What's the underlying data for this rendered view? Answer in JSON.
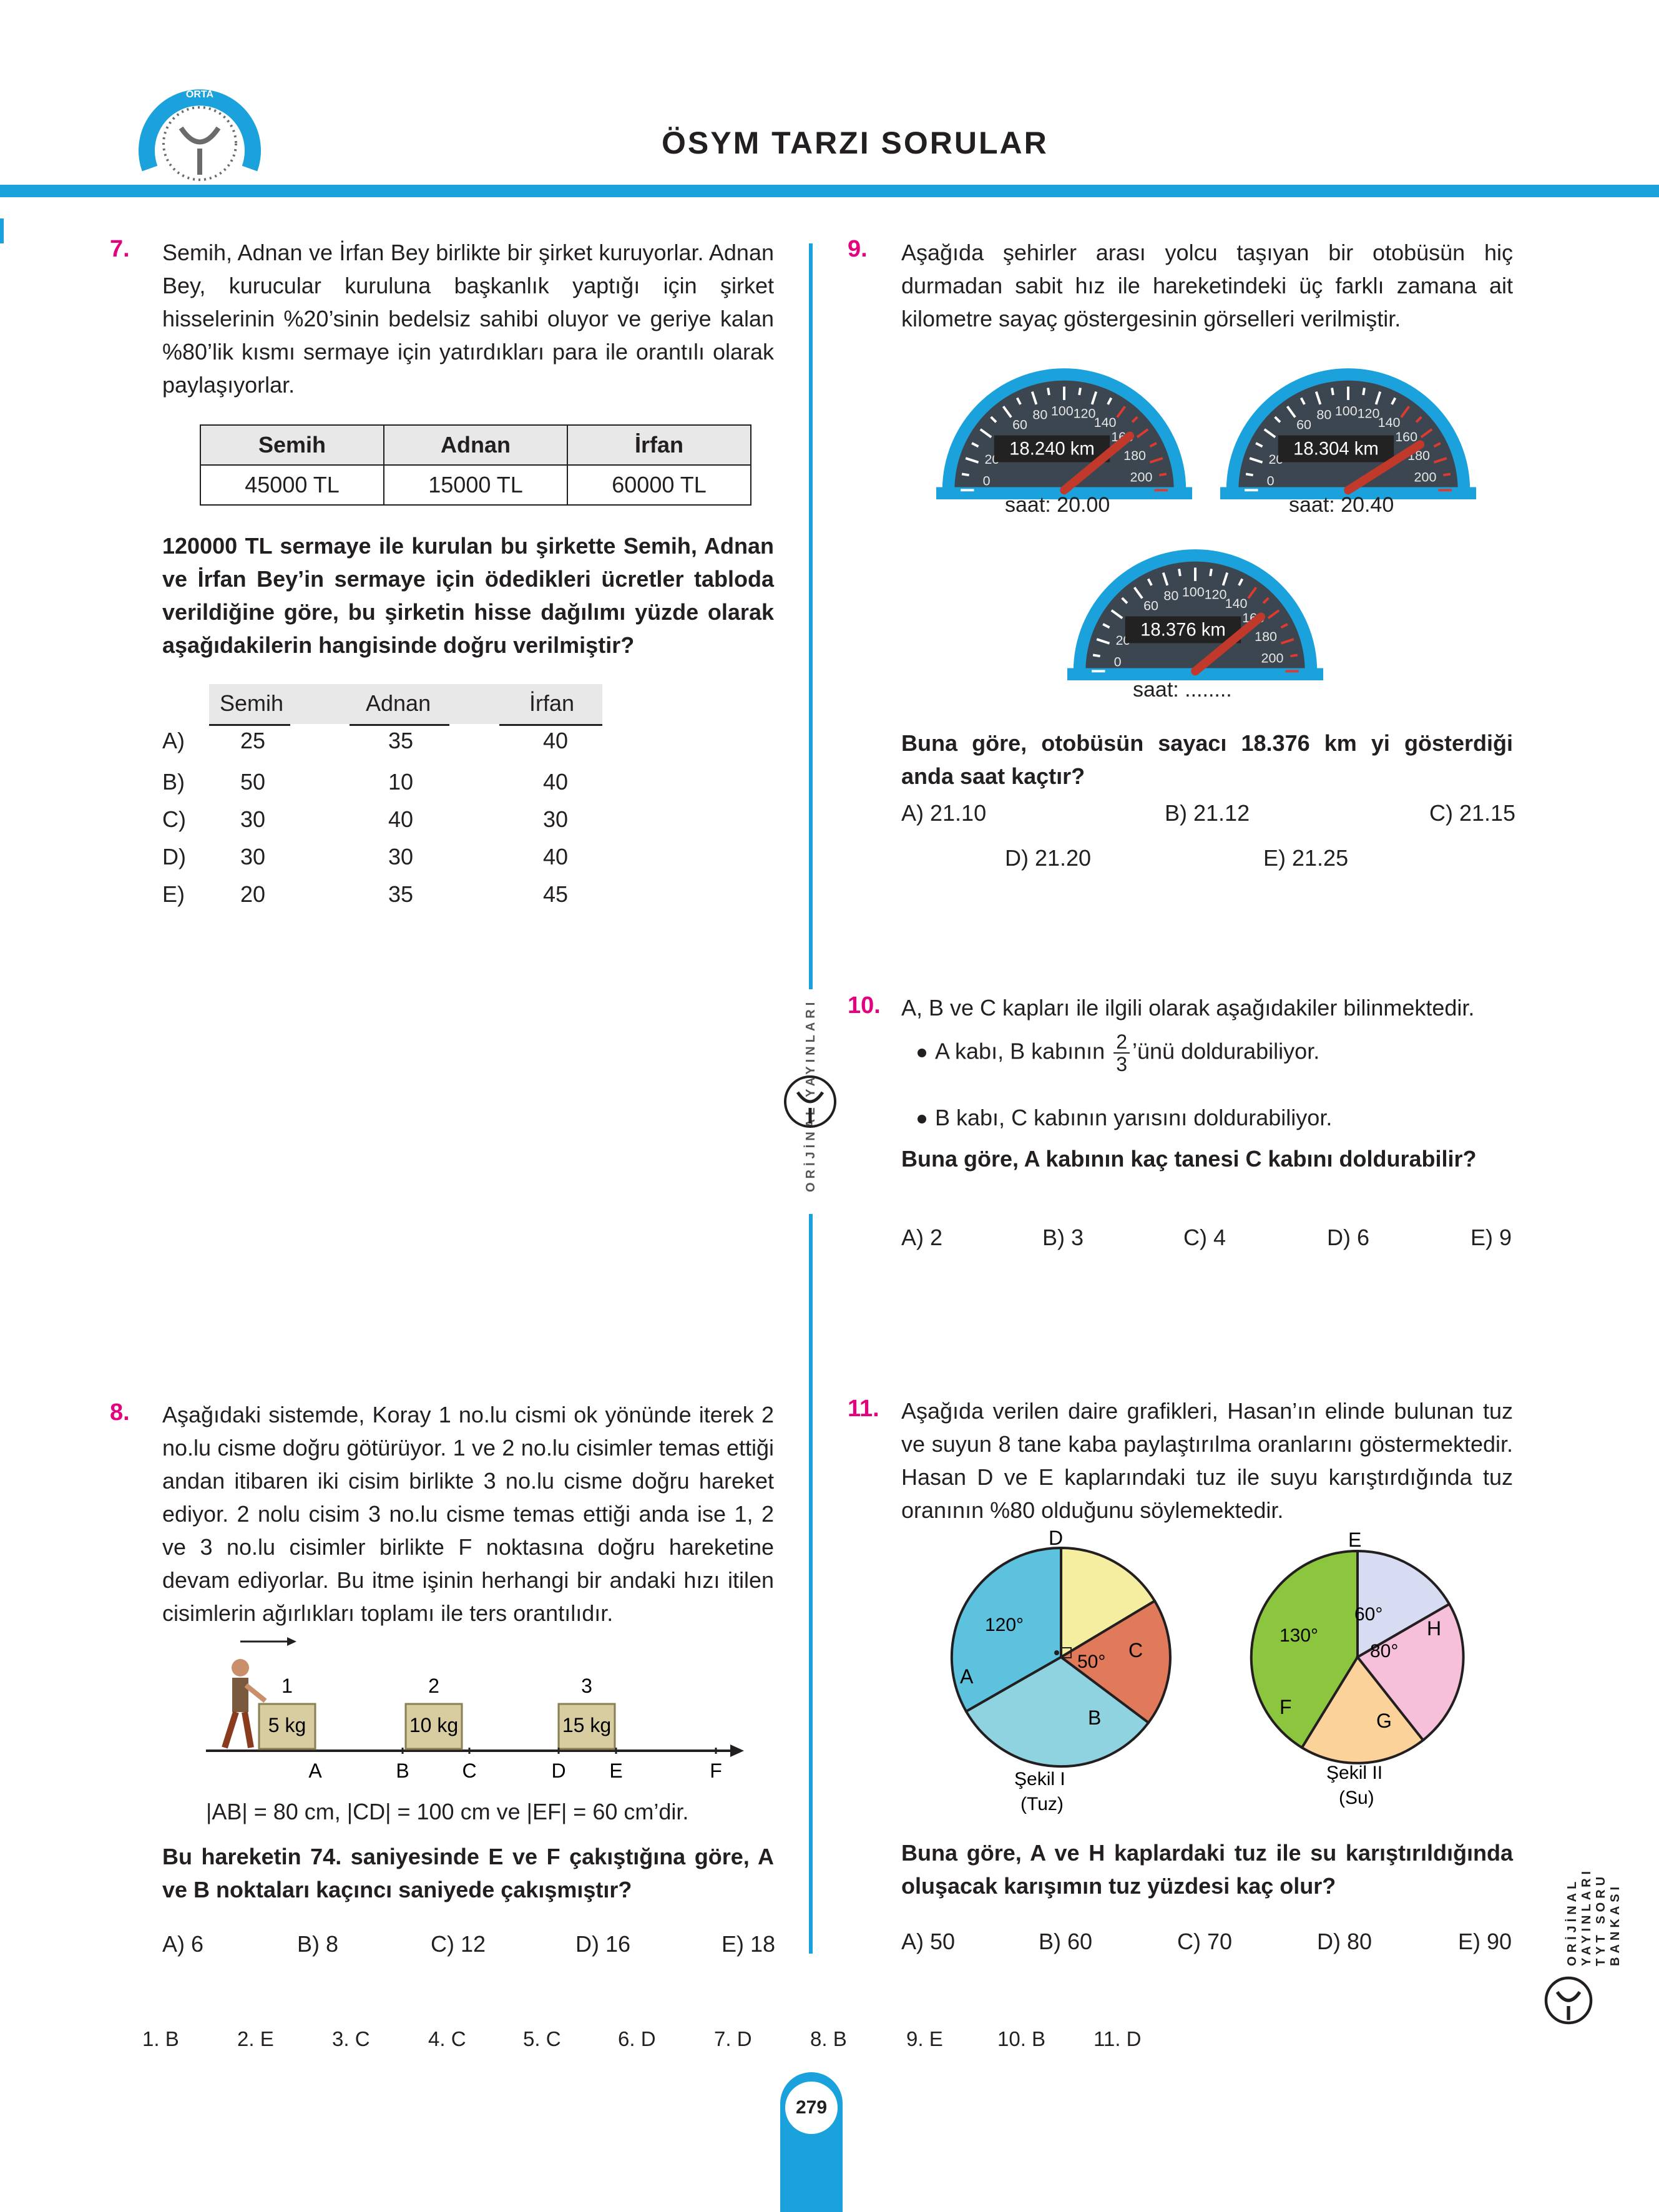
{
  "header": {
    "title": "ÖSYM TARZI SORULAR",
    "logo_text": "ORTA"
  },
  "side_left": "ORİJİNAL YAYINLARI",
  "side_right": "ORİJİNAL YAYINLARI TYT SORU BANKASI",
  "q7": {
    "num": "7.",
    "text": "Semih, Adnan ve İrfan Bey birlikte bir şirket kuruyorlar. Adnan Bey, kurucular kuruluna başkanlık yaptığı için şirket hisselerinin %20’sinin bedelsiz sahibi oluyor ve geriye kalan %80’lik kısmı sermaye için yatırdıkları para ile orantılı olarak paylaşıyorlar.",
    "table_headers": [
      "Semih",
      "Adnan",
      "İrfan"
    ],
    "table_values": [
      "45000 TL",
      "15000 TL",
      "60000 TL"
    ],
    "question": "120000 TL sermaye ile kurulan bu şirkette Semih, Adnan ve İrfan Bey’in sermaye için ödedikleri ücretler tabloda verildiğine göre, bu şirketin hisse dağılımı yüzde olarak aşağıdakilerin hangisinde doğru verilmiştir?",
    "opt_headers": [
      "Semih",
      "Adnan",
      "İrfan"
    ],
    "options": [
      {
        "label": "A)",
        "v": [
          "25",
          "35",
          "40"
        ]
      },
      {
        "label": "B)",
        "v": [
          "50",
          "10",
          "40"
        ]
      },
      {
        "label": "C)",
        "v": [
          "30",
          "40",
          "30"
        ]
      },
      {
        "label": "D)",
        "v": [
          "30",
          "30",
          "40"
        ]
      },
      {
        "label": "E)",
        "v": [
          "20",
          "35",
          "45"
        ]
      }
    ]
  },
  "q8": {
    "num": "8.",
    "text": "Aşağıdaki sistemde, Koray 1 no.lu cismi ok yönünde iterek 2 no.lu cisme doğru götürüyor. 1 ve 2 no.lu cisimler temas ettiği andan itibaren iki cisim birlikte 3 no.lu cisme doğru hareket ediyor. 2 nolu cisim 3 no.lu cisme temas ettiği anda ise 1, 2 ve 3 no.lu cisimler birlikte F noktasına doğru hareketine devam ediyorlar. Bu itme işinin herhangi bir andaki hızı itilen cisimlerin ağırlıkları toplamı ile ters orantılıdır.",
    "boxes": [
      {
        "n": "1",
        "w": "5 kg"
      },
      {
        "n": "2",
        "w": "10 kg"
      },
      {
        "n": "3",
        "w": "15 kg"
      }
    ],
    "points": [
      "A",
      "B",
      "C",
      "D",
      "E",
      "F"
    ],
    "given": "|AB| = 80 cm, |CD| = 100 cm ve |EF| = 60 cm’dir.",
    "question": "Bu hareketin 74. saniyesinde E ve F çakıştığına göre, A ve B noktaları kaçıncı saniyede çakışmıştır?",
    "options": [
      "A) 6",
      "B) 8",
      "C) 12",
      "D) 16",
      "E) 18"
    ]
  },
  "q9": {
    "num": "9.",
    "text": "Aşağıda şehirler arası yolcu taşıyan bir otobüsün hiç durmadan sabit hız ile hareketindeki üç farklı zamana ait kilometre sayaç göstergesinin görselleri verilmiştir.",
    "gauges": [
      {
        "km": "18.240 km",
        "time": "saat: 20.00"
      },
      {
        "km": "18.304 km",
        "time": "saat: 20.40"
      },
      {
        "km": "18.376 km",
        "time": "saat: ........"
      }
    ],
    "ticks": [
      "0",
      "20",
      "40",
      "60",
      "80",
      "100",
      "120",
      "140",
      "160",
      "180",
      "200"
    ],
    "question": "Buna göre, otobüsün sayacı 18.376 km yi gösterdiği anda saat kaçtır?",
    "options": [
      "A) 21.10",
      "B) 21.12",
      "C) 21.15",
      "D) 21.20",
      "E) 21.25"
    ]
  },
  "q10": {
    "num": "10.",
    "text": "A, B ve C kapları ile ilgili olarak aşağıdakiler bilinmektedir.",
    "b1_pre": "A kabı, B kabının",
    "frac_top": "2",
    "frac_bot": "3",
    "b1_post": "’ünü doldurabiliyor.",
    "b2": "B kabı, C kabının yarısını doldurabiliyor.",
    "question": "Buna göre, A kabının kaç tanesi C kabını doldurabilir?",
    "options": [
      "A) 2",
      "B) 3",
      "C) 4",
      "D) 6",
      "E) 9"
    ]
  },
  "q11": {
    "num": "11.",
    "text": "Aşağıda verilen daire grafikleri, Hasan’ın elinde bulunan tuz ve suyun 8 tane kaba paylaştırılma oranlarını göstermektedir. Hasan D ve E kaplarındaki tuz ile suyu karıştırdığında tuz oranının %80 olduğunu söylemektedir.",
    "pie1": {
      "labels": [
        "D",
        "C",
        "B",
        "A"
      ],
      "angles": [
        "120°",
        "50°"
      ],
      "caption1": "Şekil I",
      "caption2": "(Tuz)"
    },
    "pie2": {
      "labels": [
        "E",
        "H",
        "G",
        "F"
      ],
      "angles": [
        "130°",
        "60°",
        "80°"
      ],
      "caption1": "Şekil II",
      "caption2": "(Su)"
    },
    "question": "Buna göre, A ve H kaplardaki tuz ile su karıştırıldığında oluşacak karışımın tuz yüzdesi kaç olur?",
    "options": [
      "A) 50",
      "B) 60",
      "C) 70",
      "D) 80",
      "E) 90"
    ]
  },
  "answers": [
    "1. B",
    "2. E",
    "3. C",
    "4. C",
    "5. C",
    "6. D",
    "7. D",
    "8. B",
    "9. E",
    "10. B",
    "11. D"
  ],
  "page": "279"
}
